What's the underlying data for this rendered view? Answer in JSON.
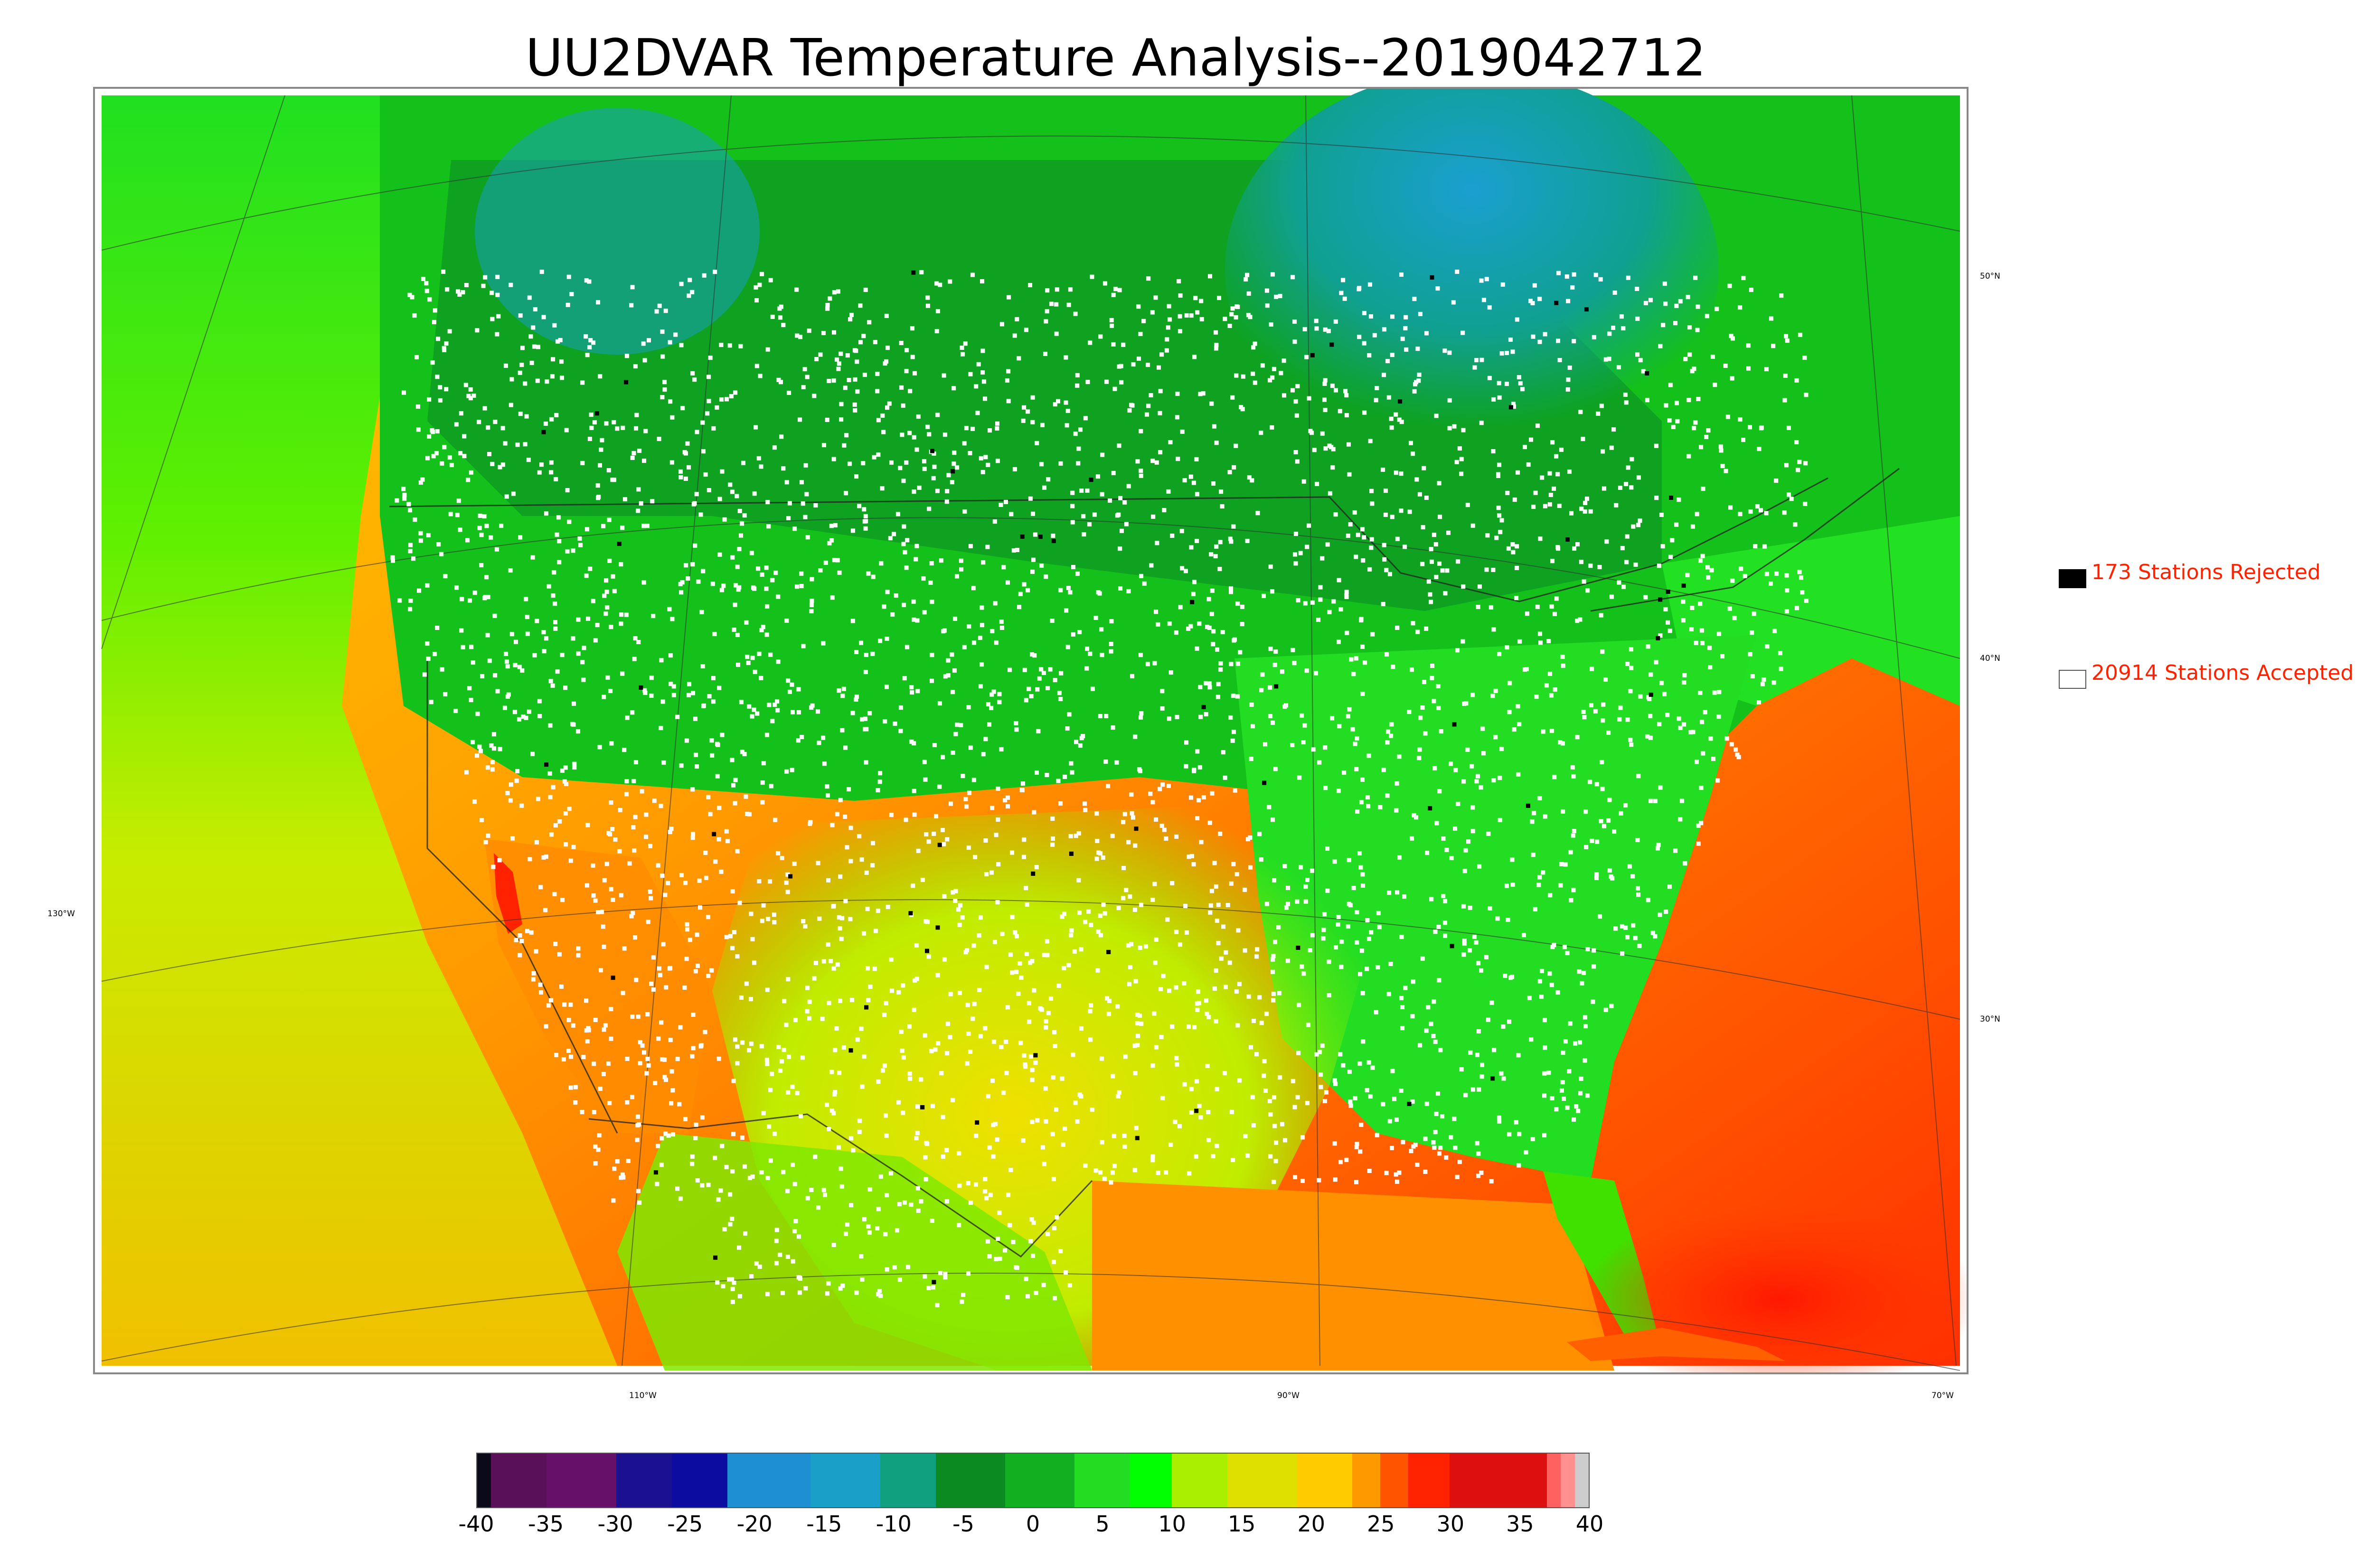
{
  "title": "UU2DVAR Temperature Analysis--2019042712",
  "legend": {
    "rejected": {
      "label": "173 Stations Rejected",
      "color": "#000000"
    },
    "accepted": {
      "label": "20914 Stations Accepted",
      "color": "#ffffff"
    },
    "text_color": "#ff2200"
  },
  "graticule": {
    "lat_labels": [
      "50°N",
      "40°N",
      "30°N"
    ],
    "lon_labels_bottom": [
      "110°W",
      "90°W",
      "70°W"
    ],
    "lon_label_left": "130°W"
  },
  "colorbar": {
    "ticks": [
      "-40",
      "-35",
      "-30",
      "-25",
      "-20",
      "-15",
      "-10",
      "-5",
      "0",
      "5",
      "10",
      "15",
      "20",
      "25",
      "30",
      "35",
      "40"
    ],
    "segments": [
      {
        "color": "#0a0a18",
        "from": -40,
        "to": -39
      },
      {
        "color": "#5a1058",
        "from": -39,
        "to": -35
      },
      {
        "color": "#66106a",
        "from": -35,
        "to": -30
      },
      {
        "color": "#1a1090",
        "from": -30,
        "to": -26
      },
      {
        "color": "#0c0ca0",
        "from": -26,
        "to": -22
      },
      {
        "color": "#1e8fd0",
        "from": -22,
        "to": -16
      },
      {
        "color": "#1aa0c8",
        "from": -16,
        "to": -11
      },
      {
        "color": "#10a080",
        "from": -11,
        "to": -7
      },
      {
        "color": "#0a8a20",
        "from": -7,
        "to": -2
      },
      {
        "color": "#10b020",
        "from": -2,
        "to": 3
      },
      {
        "color": "#22dd22",
        "from": 3,
        "to": 7
      },
      {
        "color": "#00ff00",
        "from": 7,
        "to": 10
      },
      {
        "color": "#aaee00",
        "from": 10,
        "to": 14
      },
      {
        "color": "#e0e000",
        "from": 14,
        "to": 19
      },
      {
        "color": "#ffcc00",
        "from": 19,
        "to": 23
      },
      {
        "color": "#ff9900",
        "from": 23,
        "to": 25
      },
      {
        "color": "#ff5500",
        "from": 25,
        "to": 27
      },
      {
        "color": "#ff2200",
        "from": 27,
        "to": 30
      },
      {
        "color": "#dd1010",
        "from": 30,
        "to": 37
      },
      {
        "color": "#ff6060",
        "from": 37,
        "to": 38
      },
      {
        "color": "#ff9090",
        "from": 38,
        "to": 39
      },
      {
        "color": "#cccccc",
        "from": 39,
        "to": 40
      }
    ]
  },
  "map": {
    "stations_accepted": 20914,
    "stations_rejected": 173,
    "colors": {
      "ocean_warm": "#ff8a00",
      "ocean_hot": "#ff2a00",
      "ocean_mid": "#ffc000",
      "pacific": "#e8ec00",
      "pacific_north": "#22ee22",
      "land_green": "#10c818",
      "land_dark": "#0a8a20",
      "canada_blue": "#1a9fc8",
      "south_yellow": "#d8e800",
      "desert_orange": "#ff9000"
    }
  }
}
